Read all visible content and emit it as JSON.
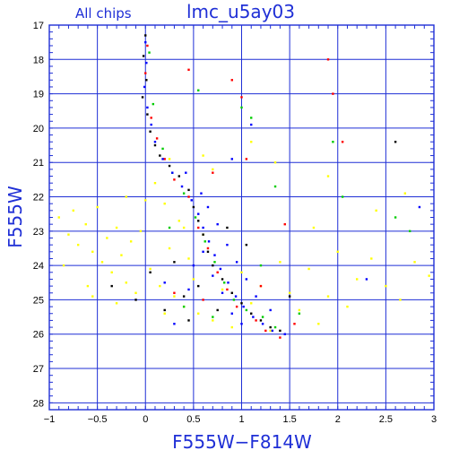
{
  "header": {
    "subset_label": "All chips",
    "title": "lmc_u5ay03"
  },
  "chart_data": {
    "type": "scatter",
    "title": "lmc_u5ay03",
    "subtitle": "All chips",
    "xlabel": "F555W−F814W",
    "ylabel": "F555W",
    "xlim": [
      -1,
      3
    ],
    "ylim": [
      28.2,
      17
    ],
    "y_inverted": true,
    "grid": true,
    "x_ticks": [
      -1,
      -0.5,
      0,
      0.5,
      1,
      1.5,
      2,
      2.5,
      3
    ],
    "x_tick_labels": [
      "−1",
      "−0.5",
      "0",
      "0.5",
      "1",
      "1.5",
      "2",
      "2.5",
      "3"
    ],
    "y_ticks": [
      17,
      18,
      19,
      20,
      21,
      22,
      23,
      24,
      25,
      26,
      27,
      28
    ],
    "y_tick_labels": [
      "17",
      "18",
      "19",
      "20",
      "21",
      "22",
      "23",
      "24",
      "25",
      "26",
      "27",
      "28"
    ],
    "colors": {
      "axes": "#1f2fd6",
      "grid": "#1f2fd6",
      "tick_labels": "#000000",
      "title": "#1f2fd6"
    },
    "series": [
      {
        "color": "#ffff00",
        "points": [
          [
            -0.9,
            22.6
          ],
          [
            -0.8,
            23.1
          ],
          [
            -0.75,
            22.4
          ],
          [
            -0.7,
            23.4
          ],
          [
            -0.62,
            22.8
          ],
          [
            -0.55,
            23.6
          ],
          [
            -0.5,
            22.3
          ],
          [
            -0.45,
            23.9
          ],
          [
            -0.4,
            23.2
          ],
          [
            -0.35,
            24.2
          ],
          [
            -0.3,
            22.9
          ],
          [
            -0.25,
            23.7
          ],
          [
            -0.2,
            24.5
          ],
          [
            -0.15,
            23.3
          ],
          [
            -0.1,
            24.8
          ],
          [
            -0.05,
            23.0
          ],
          [
            0.0,
            22.1
          ],
          [
            0.05,
            24.1
          ],
          [
            0.1,
            21.6
          ],
          [
            0.15,
            24.6
          ],
          [
            0.2,
            22.2
          ],
          [
            0.25,
            23.5
          ],
          [
            0.3,
            24.9
          ],
          [
            0.35,
            22.7
          ],
          [
            0.4,
            25.2
          ],
          [
            0.45,
            23.8
          ],
          [
            0.5,
            24.4
          ],
          [
            0.55,
            25.4
          ],
          [
            0.6,
            23.1
          ],
          [
            0.7,
            25.6
          ],
          [
            0.8,
            24.7
          ],
          [
            0.9,
            25.8
          ],
          [
            1.0,
            24.2
          ],
          [
            1.1,
            25.1
          ],
          [
            1.2,
            24.6
          ],
          [
            1.3,
            25.9
          ],
          [
            1.4,
            23.9
          ],
          [
            1.5,
            24.8
          ],
          [
            1.6,
            25.3
          ],
          [
            1.7,
            24.1
          ],
          [
            1.8,
            25.7
          ],
          [
            1.9,
            24.9
          ],
          [
            2.0,
            23.6
          ],
          [
            2.1,
            25.2
          ],
          [
            2.2,
            24.4
          ],
          [
            2.35,
            23.8
          ],
          [
            2.5,
            24.6
          ],
          [
            2.65,
            25.0
          ],
          [
            2.8,
            23.9
          ],
          [
            2.95,
            24.3
          ],
          [
            -0.85,
            24.0
          ],
          [
            -0.6,
            24.6
          ],
          [
            -0.3,
            25.1
          ],
          [
            0.2,
            25.4
          ],
          [
            0.6,
            20.8
          ],
          [
            0.7,
            21.2
          ],
          [
            0.25,
            20.9
          ],
          [
            1.1,
            20.4
          ],
          [
            1.35,
            21.0
          ],
          [
            1.75,
            22.9
          ],
          [
            1.9,
            21.4
          ],
          [
            0.4,
            22.9
          ],
          [
            -0.2,
            22.0
          ],
          [
            -0.55,
            24.9
          ],
          [
            2.4,
            22.4
          ],
          [
            2.7,
            21.9
          ]
        ]
      },
      {
        "color": "#000000",
        "points": [
          [
            0.0,
            17.3
          ],
          [
            -0.02,
            17.9
          ],
          [
            0.01,
            18.6
          ],
          [
            -0.03,
            19.1
          ],
          [
            0.02,
            19.6
          ],
          [
            0.05,
            20.1
          ],
          [
            0.1,
            20.5
          ],
          [
            0.15,
            20.8
          ],
          [
            0.25,
            21.1
          ],
          [
            0.35,
            21.4
          ],
          [
            0.45,
            21.8
          ],
          [
            0.5,
            22.3
          ],
          [
            0.55,
            22.7
          ],
          [
            0.6,
            23.1
          ],
          [
            0.65,
            23.6
          ],
          [
            0.7,
            24.0
          ],
          [
            0.8,
            24.4
          ],
          [
            0.9,
            24.8
          ],
          [
            1.0,
            25.1
          ],
          [
            1.1,
            25.4
          ],
          [
            1.2,
            25.6
          ],
          [
            1.3,
            25.8
          ],
          [
            0.55,
            24.6
          ],
          [
            0.4,
            24.9
          ],
          [
            0.2,
            25.3
          ],
          [
            -0.1,
            25.0
          ],
          [
            0.3,
            23.9
          ],
          [
            1.4,
            25.9
          ],
          [
            0.75,
            25.3
          ],
          [
            1.5,
            24.9
          ],
          [
            2.6,
            20.4
          ],
          [
            0.05,
            24.2
          ],
          [
            0.85,
            22.9
          ],
          [
            1.05,
            23.4
          ],
          [
            0.45,
            25.6
          ],
          [
            -0.35,
            24.6
          ]
        ]
      },
      {
        "color": "#ff0000",
        "points": [
          [
            0.02,
            17.6
          ],
          [
            0.0,
            18.4
          ],
          [
            0.06,
            19.7
          ],
          [
            0.12,
            20.3
          ],
          [
            0.2,
            20.9
          ],
          [
            0.3,
            21.5
          ],
          [
            0.45,
            22.0
          ],
          [
            0.55,
            22.9
          ],
          [
            0.65,
            23.5
          ],
          [
            0.75,
            24.2
          ],
          [
            0.85,
            24.7
          ],
          [
            0.95,
            25.2
          ],
          [
            1.15,
            25.6
          ],
          [
            1.25,
            25.9
          ],
          [
            1.4,
            26.1
          ],
          [
            1.55,
            25.7
          ],
          [
            0.6,
            25.0
          ],
          [
            0.3,
            24.8
          ],
          [
            1.05,
            20.9
          ],
          [
            1.0,
            19.1
          ],
          [
            1.9,
            18.0
          ],
          [
            1.95,
            19.0
          ],
          [
            2.05,
            20.4
          ],
          [
            0.45,
            18.3
          ],
          [
            0.9,
            18.6
          ],
          [
            1.45,
            22.8
          ],
          [
            0.7,
            21.3
          ],
          [
            1.2,
            24.6
          ]
        ]
      },
      {
        "color": "#00cc00",
        "points": [
          [
            0.04,
            17.8
          ],
          [
            0.08,
            19.3
          ],
          [
            0.18,
            20.6
          ],
          [
            0.28,
            21.3
          ],
          [
            0.4,
            21.9
          ],
          [
            0.52,
            22.6
          ],
          [
            0.62,
            23.3
          ],
          [
            0.72,
            23.9
          ],
          [
            0.82,
            24.5
          ],
          [
            0.92,
            25.0
          ],
          [
            1.05,
            25.3
          ],
          [
            1.22,
            25.5
          ],
          [
            1.35,
            25.8
          ],
          [
            1.6,
            25.4
          ],
          [
            0.7,
            25.5
          ],
          [
            0.4,
            25.2
          ],
          [
            1.0,
            19.4
          ],
          [
            1.1,
            19.7
          ],
          [
            1.95,
            20.4
          ],
          [
            2.6,
            22.6
          ],
          [
            2.75,
            23.0
          ],
          [
            1.35,
            21.7
          ],
          [
            0.55,
            18.9
          ],
          [
            2.05,
            22.0
          ],
          [
            1.2,
            24.0
          ],
          [
            0.25,
            22.9
          ]
        ]
      },
      {
        "color": "#0000ff",
        "points": [
          [
            0.0,
            17.5
          ],
          [
            0.01,
            18.1
          ],
          [
            -0.01,
            18.8
          ],
          [
            0.02,
            19.4
          ],
          [
            0.06,
            19.9
          ],
          [
            0.1,
            20.4
          ],
          [
            0.18,
            20.9
          ],
          [
            0.28,
            21.3
          ],
          [
            0.38,
            21.7
          ],
          [
            0.48,
            22.1
          ],
          [
            0.55,
            22.5
          ],
          [
            0.6,
            22.9
          ],
          [
            0.66,
            23.3
          ],
          [
            0.72,
            23.7
          ],
          [
            0.78,
            24.1
          ],
          [
            0.86,
            24.5
          ],
          [
            0.94,
            24.9
          ],
          [
            1.02,
            25.2
          ],
          [
            1.12,
            25.5
          ],
          [
            1.22,
            25.7
          ],
          [
            1.32,
            25.9
          ],
          [
            1.45,
            26.0
          ],
          [
            0.6,
            23.6
          ],
          [
            0.7,
            24.3
          ],
          [
            0.8,
            24.8
          ],
          [
            0.9,
            25.4
          ],
          [
            1.0,
            25.7
          ],
          [
            0.5,
            24.0
          ],
          [
            0.65,
            22.3
          ],
          [
            0.75,
            22.8
          ],
          [
            0.85,
            23.4
          ],
          [
            0.95,
            23.9
          ],
          [
            1.05,
            24.4
          ],
          [
            1.15,
            24.9
          ],
          [
            0.58,
            21.9
          ],
          [
            0.42,
            21.3
          ],
          [
            0.9,
            20.9
          ],
          [
            1.1,
            19.9
          ],
          [
            0.3,
            25.7
          ],
          [
            0.2,
            24.5
          ],
          [
            0.45,
            24.7
          ],
          [
            1.3,
            25.3
          ],
          [
            2.85,
            22.3
          ],
          [
            2.3,
            24.4
          ]
        ]
      }
    ]
  }
}
